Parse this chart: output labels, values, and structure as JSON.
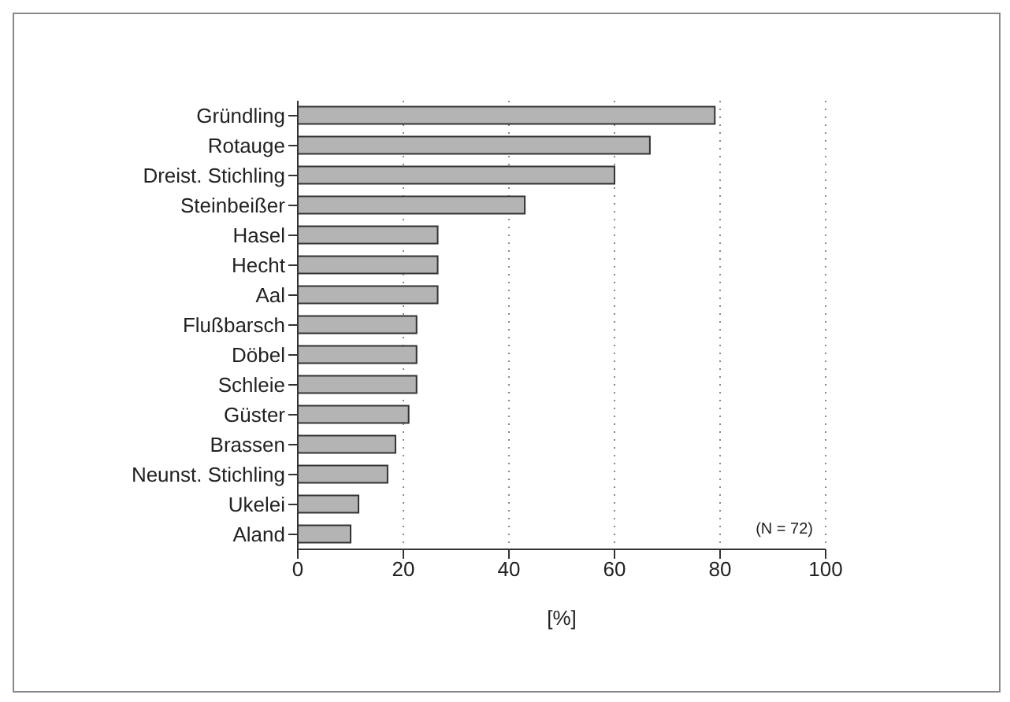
{
  "chart_data": {
    "type": "bar",
    "orientation": "horizontal",
    "xlabel": "[%]",
    "categories": [
      "Gründling",
      "Rotauge",
      "Dreist. Stichling",
      "Steinbeißer",
      "Hasel",
      "Hecht",
      "Aal",
      "Flußbarsch",
      "Döbel",
      "Schleie",
      "Güster",
      "Brassen",
      "Neunst. Stichling",
      "Ukelei",
      "Aland"
    ],
    "values": [
      79,
      66.7,
      60,
      43,
      26.5,
      26.5,
      26.5,
      22.5,
      22.5,
      22.5,
      21,
      18.5,
      17,
      11.5,
      10
    ],
    "color": "#b4b4b4",
    "xlim": [
      0,
      100
    ],
    "xticks": [
      0,
      20,
      40,
      60,
      80,
      100
    ],
    "grid": "x",
    "annotations": [
      "(N = 72)"
    ]
  }
}
